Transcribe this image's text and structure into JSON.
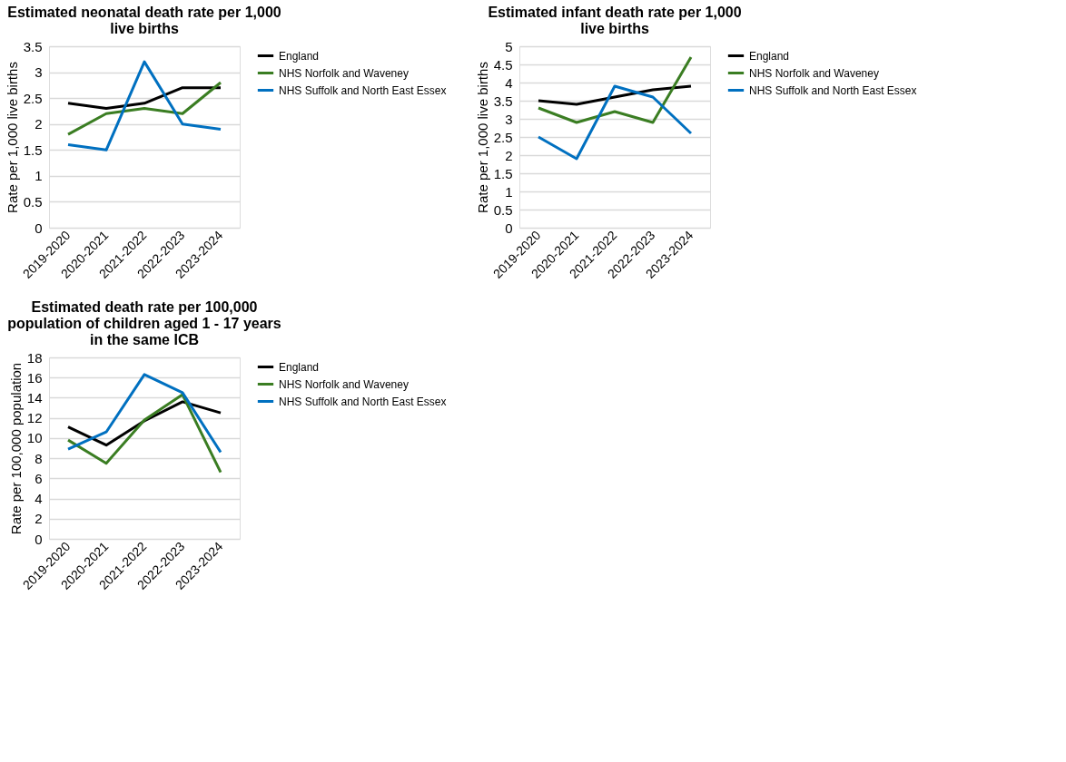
{
  "chart_data": [
    {
      "type": "line",
      "title": "Estimated neonatal death rate per 1,000 live births",
      "ylabel": "Rate per 1,000 live births",
      "categories": [
        "2019-2020",
        "2020-2021",
        "2021-2022",
        "2022-2023",
        "2023-2024"
      ],
      "ylim": [
        0,
        3.5
      ],
      "yticks": [
        0,
        0.5,
        1,
        1.5,
        2,
        2.5,
        3,
        3.5
      ],
      "grid": "y",
      "legend": "right",
      "marker": "none",
      "line_style": "solid",
      "series": [
        {
          "name": "England",
          "color": "#000000",
          "values": [
            2.4,
            2.3,
            2.4,
            2.7,
            2.7
          ]
        },
        {
          "name": "NHS Norfolk and Waveney",
          "color": "#3a7d22",
          "values": [
            1.8,
            2.2,
            2.3,
            2.2,
            2.8
          ]
        },
        {
          "name": "NHS Suffolk and North East Essex",
          "color": "#0070c0",
          "values": [
            1.6,
            1.5,
            3.2,
            2.0,
            1.9
          ]
        }
      ]
    },
    {
      "type": "line",
      "title": "Estimated infant death rate per 1,000 live births",
      "ylabel": "Rate per 1,000 live births",
      "categories": [
        "2019-2020",
        "2020-2021",
        "2021-2022",
        "2022-2023",
        "2023-2024"
      ],
      "ylim": [
        0,
        5
      ],
      "yticks": [
        0,
        0.5,
        1,
        1.5,
        2,
        2.5,
        3,
        3.5,
        4,
        4.5,
        5
      ],
      "grid": "y",
      "legend": "right",
      "marker": "none",
      "line_style": "solid",
      "series": [
        {
          "name": "England",
          "color": "#000000",
          "values": [
            3.5,
            3.4,
            3.6,
            3.8,
            3.9
          ]
        },
        {
          "name": "NHS Norfolk and Waveney",
          "color": "#3a7d22",
          "values": [
            3.3,
            2.9,
            3.2,
            2.9,
            4.7
          ]
        },
        {
          "name": "NHS Suffolk and North East Essex",
          "color": "#0070c0",
          "values": [
            2.5,
            1.9,
            3.9,
            3.6,
            2.6
          ]
        }
      ]
    },
    {
      "type": "line",
      "title": "Estimated death rate per 100,000 population of children aged 1 - 17 years in the same ICB",
      "ylabel": "Rate per 100,000 population",
      "categories": [
        "2019-2020",
        "2020-2021",
        "2021-2022",
        "2022-2023",
        "2023-2024"
      ],
      "ylim": [
        0,
        18
      ],
      "yticks": [
        0,
        2,
        4,
        6,
        8,
        10,
        12,
        14,
        16,
        18
      ],
      "grid": "y",
      "legend": "right",
      "marker": "none",
      "line_style": "solid",
      "series": [
        {
          "name": "England",
          "color": "#000000",
          "values": [
            11.1,
            9.3,
            11.7,
            13.6,
            12.5
          ]
        },
        {
          "name": "NHS Norfolk and Waveney",
          "color": "#3a7d22",
          "values": [
            9.8,
            7.5,
            11.8,
            14.3,
            6.6
          ]
        },
        {
          "name": "NHS Suffolk and North East Essex",
          "color": "#0070c0",
          "values": [
            8.9,
            10.6,
            16.3,
            14.5,
            8.6
          ]
        }
      ]
    }
  ]
}
